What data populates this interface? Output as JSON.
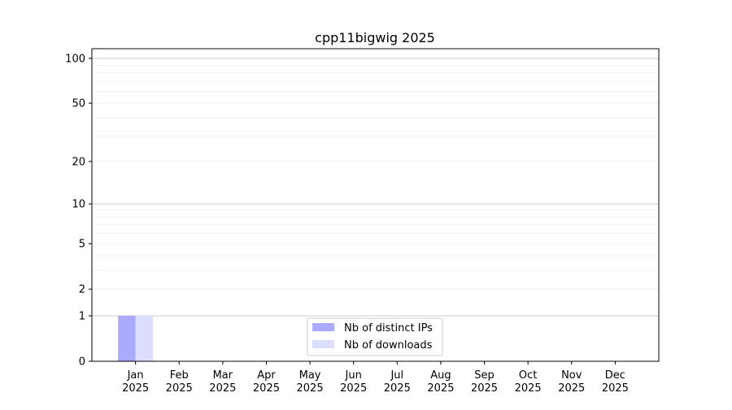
{
  "chart_data": {
    "type": "bar",
    "title": "cpp11bigwig 2025",
    "xlabel": "",
    "ylabel": "",
    "y_scale": "log(1+y)",
    "ylim": [
      0,
      116
    ],
    "y_ticks": [
      0,
      1,
      2,
      5,
      10,
      20,
      50,
      100
    ],
    "y_tick_labels": [
      "0",
      "1",
      "2",
      "5",
      "10",
      "20",
      "50",
      "100"
    ],
    "grid": true,
    "legend_position": "lower-center",
    "categories": [
      [
        "Jan",
        "2025"
      ],
      [
        "Feb",
        "2025"
      ],
      [
        "Mar",
        "2025"
      ],
      [
        "Apr",
        "2025"
      ],
      [
        "May",
        "2025"
      ],
      [
        "Jun",
        "2025"
      ],
      [
        "Jul",
        "2025"
      ],
      [
        "Aug",
        "2025"
      ],
      [
        "Sep",
        "2025"
      ],
      [
        "Oct",
        "2025"
      ],
      [
        "Nov",
        "2025"
      ],
      [
        "Dec",
        "2025"
      ]
    ],
    "series": [
      {
        "name": "Nb of distinct IPs",
        "color": "#aaaaff",
        "values": [
          1,
          0,
          0,
          0,
          0,
          0,
          0,
          0,
          0,
          0,
          0,
          0
        ]
      },
      {
        "name": "Nb of downloads",
        "color": "#ddddff",
        "values": [
          1,
          0,
          0,
          0,
          0,
          0,
          0,
          0,
          0,
          0,
          0,
          0
        ]
      }
    ]
  }
}
